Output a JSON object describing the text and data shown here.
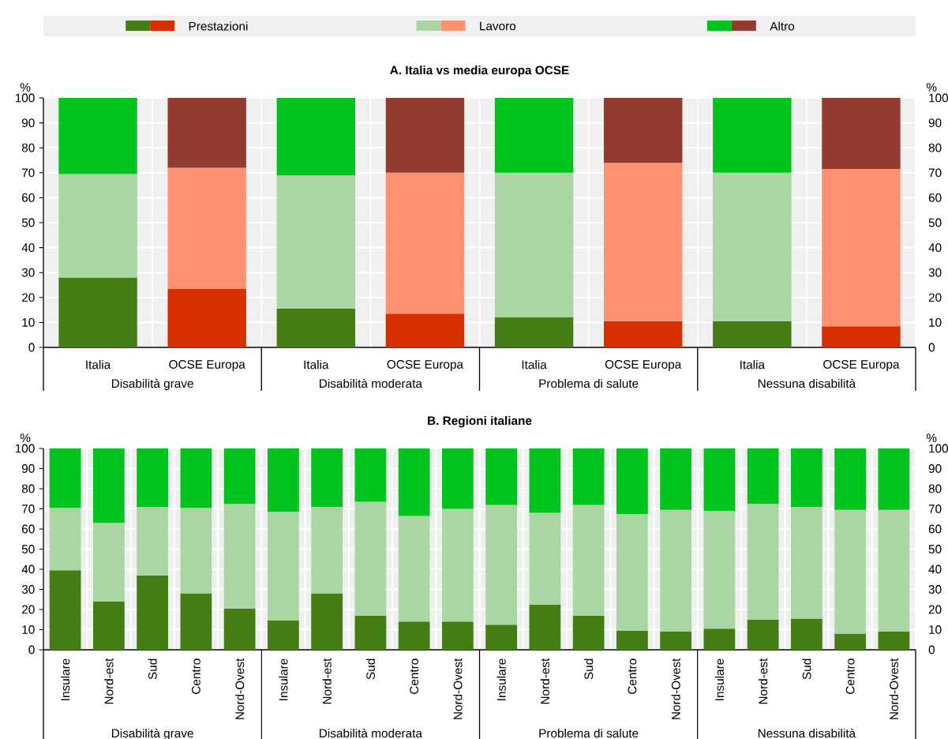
{
  "chart_data": [
    {
      "type": "bar",
      "stacked": true,
      "title": "A. Italia vs media europa OCSE",
      "ylabel": "%",
      "y2label": "%",
      "categories": [
        "Italia",
        "OCSE Europa",
        "Italia",
        "OCSE Europa",
        "Italia",
        "OCSE Europa",
        "Italia",
        "OCSE Europa"
      ],
      "annotations": [
        "Disabilità grave",
        "Disabilità moderata",
        "Problema di salute",
        "Nessuna disabilità"
      ],
      "series": [
        {
          "name": "Prestazioni",
          "colors": [
            "#457d15",
            "#d63000",
            "#457d15",
            "#d63000",
            "#457d15",
            "#d63000",
            "#457d15",
            "#d63000"
          ],
          "values": [
            28,
            23.5,
            15.5,
            13.5,
            12,
            10.5,
            10.5,
            8.5
          ]
        },
        {
          "name": "Lavoro",
          "colors": [
            "#aad6a4",
            "#ff9072",
            "#aad6a4",
            "#ff9072",
            "#aad6a4",
            "#ff9072",
            "#aad6a4",
            "#ff9072"
          ],
          "values": [
            41.5,
            48.5,
            53.5,
            56.5,
            58,
            63.5,
            59.5,
            63
          ]
        },
        {
          "name": "Altro",
          "colors": [
            "#00c41e",
            "#933b30",
            "#00c41e",
            "#933b30",
            "#00c41e",
            "#933b30",
            "#00c41e",
            "#933b30"
          ],
          "values": [
            30.5,
            28,
            31,
            30,
            30,
            26,
            30,
            28.5
          ]
        }
      ],
      "ylim": [
        0,
        100
      ],
      "yticks": [
        0,
        10,
        20,
        30,
        40,
        50,
        60,
        70,
        80,
        90,
        100
      ],
      "y2lim": [
        0,
        100
      ],
      "y2ticks": [
        0,
        10,
        20,
        30,
        40,
        50,
        60,
        70,
        80,
        90,
        100
      ],
      "grid": true,
      "legend": "top"
    },
    {
      "type": "bar",
      "stacked": true,
      "title": "B. Regioni italiane",
      "ylabel": "%",
      "y2label": "%",
      "categories": [
        "Insulare",
        "Nord-est",
        "Sud",
        "Centro",
        "Nord-Ovest",
        "Insulare",
        "Nord-est",
        "Sud",
        "Centro",
        "Nord-Ovest",
        "Insulare",
        "Nord-est",
        "Sud",
        "Centro",
        "Nord-Ovest",
        "Insulare",
        "Nord-est",
        "Sud",
        "Centro",
        "Nord-Ovest"
      ],
      "annotations": [
        "Disabilità grave",
        "Disabilità moderata",
        "Problema di salute",
        "Nessuna disabilità"
      ],
      "series": [
        {
          "color": "#457d15",
          "values": [
            39.5,
            24,
            37,
            28,
            20.5,
            14.5,
            28,
            17,
            14,
            14,
            12.5,
            22.5,
            17,
            9.5,
            9,
            10.5,
            15,
            15.5,
            8,
            9
          ]
        },
        {
          "color": "#aad6a4",
          "values": [
            31,
            39,
            34,
            42.5,
            52,
            54,
            43,
            56.5,
            52.5,
            56,
            59.5,
            45.5,
            55,
            58,
            60.5,
            58.5,
            57.5,
            55.5,
            61.5,
            60.5
          ]
        },
        {
          "color": "#00c41e",
          "values": [
            29.5,
            37,
            29,
            29.5,
            27.5,
            31.5,
            29,
            26.5,
            33.5,
            30,
            28,
            32,
            28,
            32.5,
            30.5,
            31,
            27.5,
            29,
            30.5,
            30.5
          ]
        }
      ],
      "ylim": [
        0,
        100
      ],
      "yticks": [
        0,
        10,
        20,
        30,
        40,
        50,
        60,
        70,
        80,
        90,
        100
      ],
      "y2lim": [
        0,
        100
      ],
      "y2ticks": [
        0,
        10,
        20,
        30,
        40,
        50,
        60,
        70,
        80,
        90,
        100
      ],
      "grid": true
    }
  ]
}
